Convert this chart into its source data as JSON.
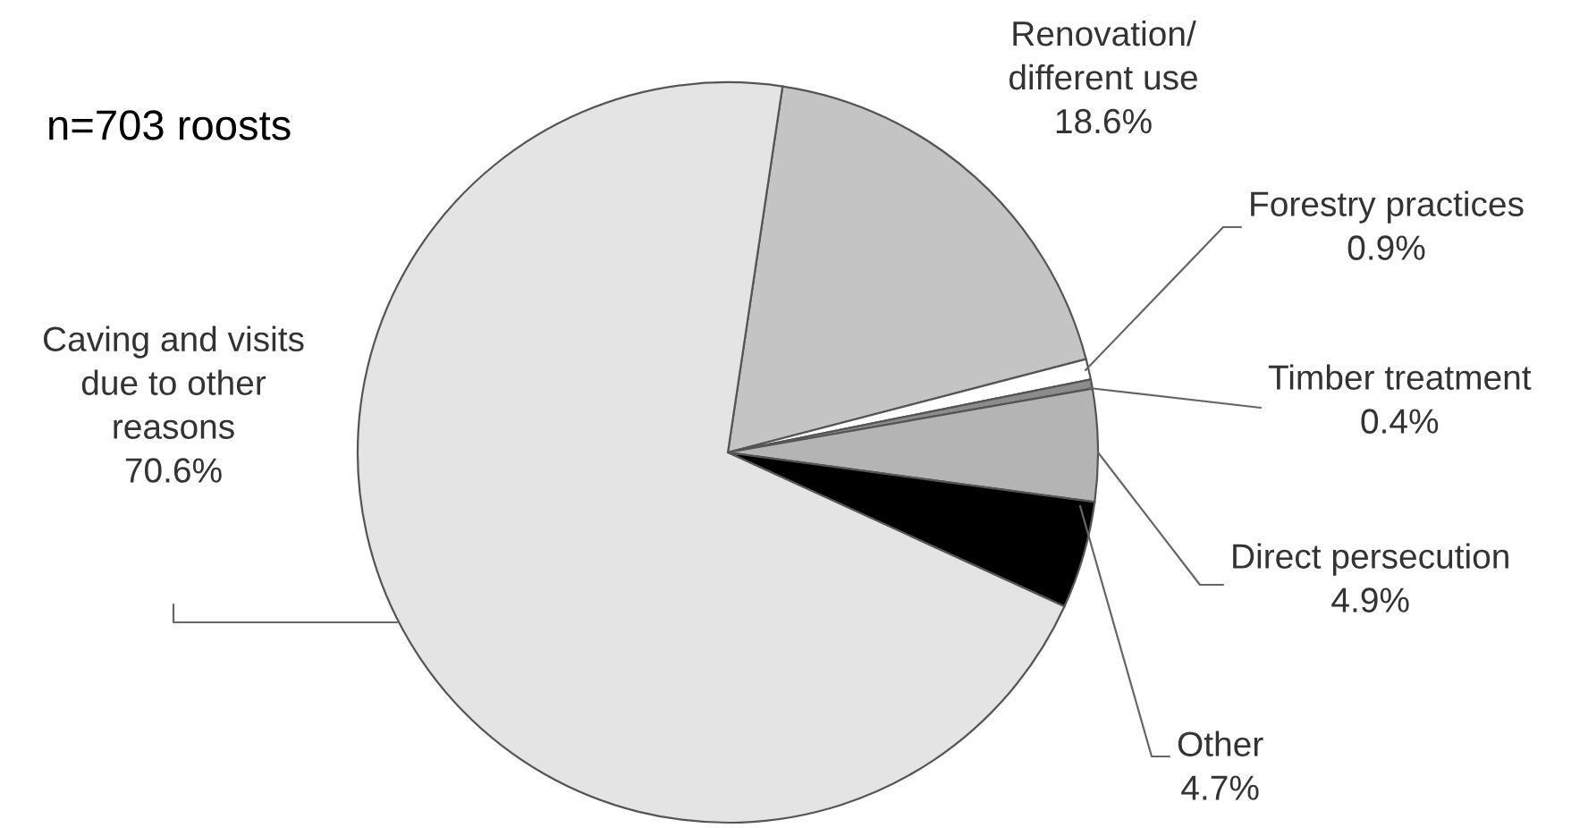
{
  "chart_data": {
    "type": "pie",
    "categories": [
      "Renovation/\ndifferent use",
      "Forestry practices",
      "Timber treatment",
      "Direct persecution",
      "Other",
      "Caving and visits\ndue to other\nreasons"
    ],
    "values": [
      18.6,
      0.9,
      0.4,
      4.9,
      4.7,
      70.6
    ],
    "value_labels": [
      "18.6%",
      "0.9%",
      "0.4%",
      "4.9%",
      "4.7%",
      "70.6%"
    ],
    "colors": [
      "#c4c4c4",
      "#ffffff",
      "#8c8c8c",
      "#b4b4b4",
      "#000000",
      "#e4e4e4"
    ],
    "annotations": [
      "n=703 roosts"
    ],
    "legend": false
  }
}
